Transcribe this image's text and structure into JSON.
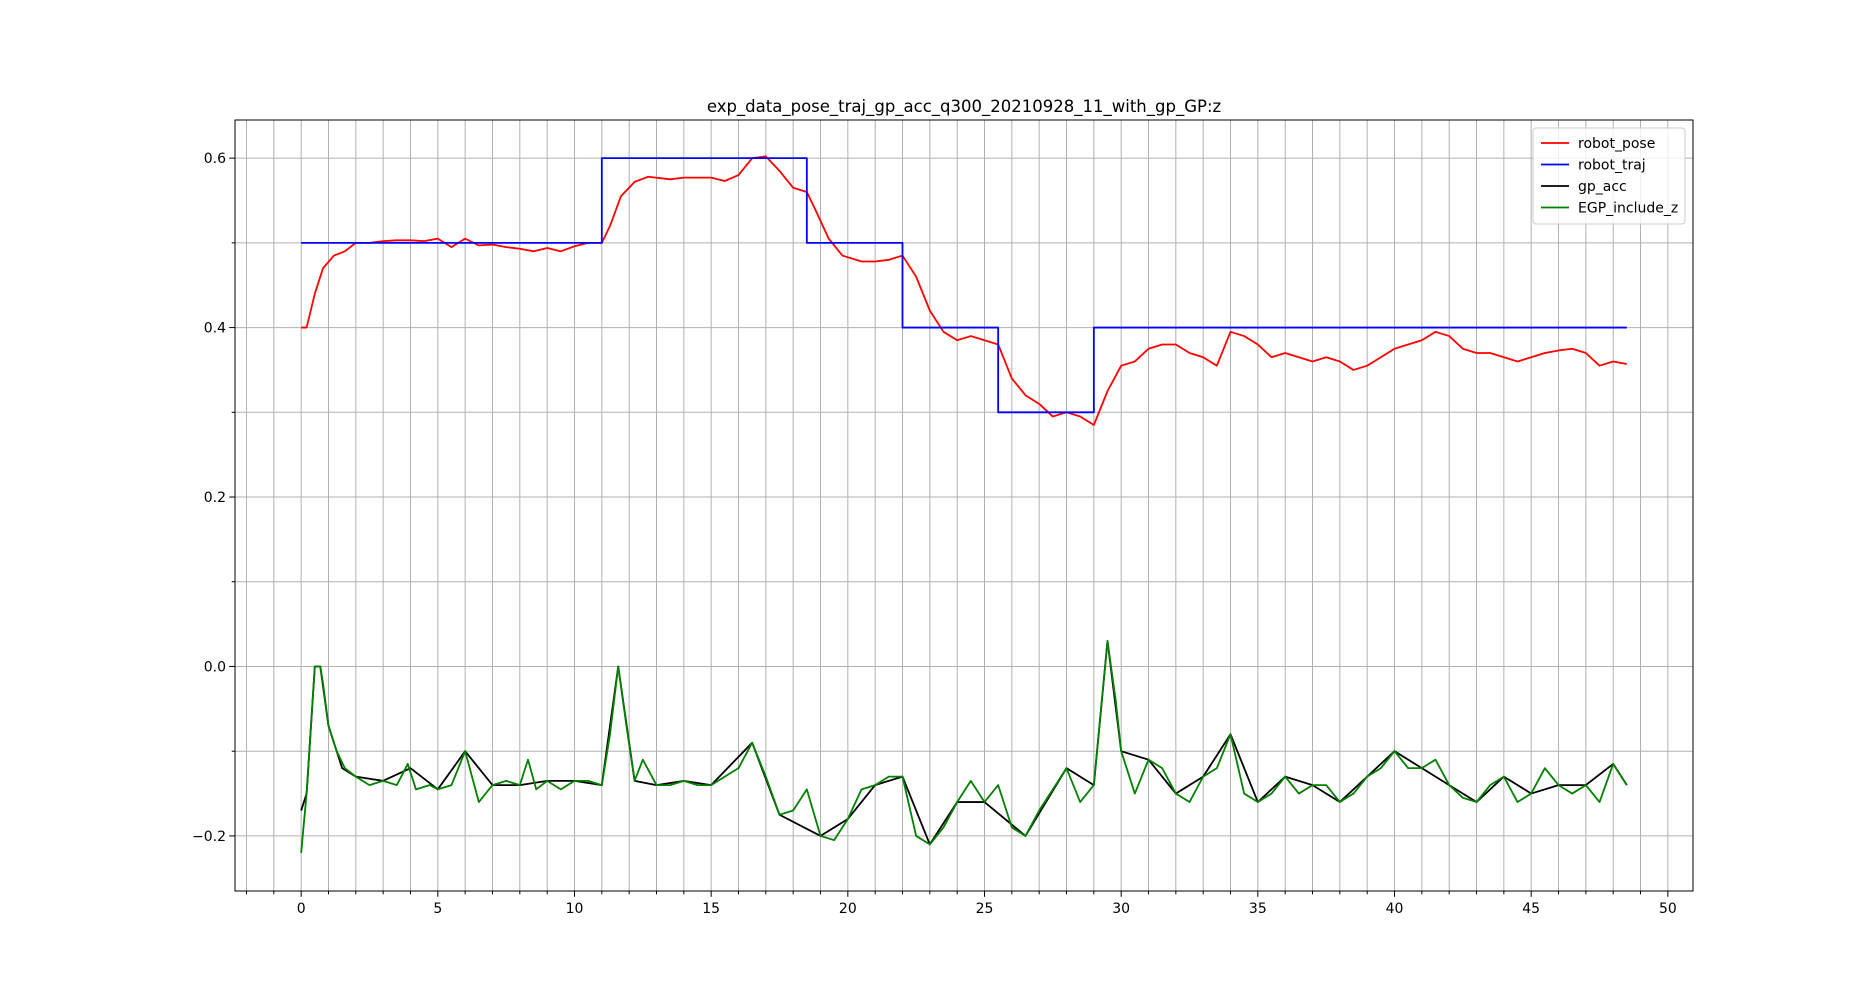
{
  "chart_data": {
    "type": "line",
    "title": "exp_data_pose_traj_gp_acc_q300_20210928_11_with_gp_GP:z",
    "xlim": [
      -2.42,
      50.92
    ],
    "ylim": [
      -0.265,
      0.645
    ],
    "xticks": [
      0,
      5,
      10,
      15,
      20,
      25,
      30,
      35,
      40,
      45,
      50
    ],
    "yticks": [
      {
        "value": -0.2,
        "label": "−0.2"
      },
      {
        "value": 0,
        "label": "0.0"
      },
      0.2,
      0.4,
      0.6
    ],
    "xminorticks": [
      -2,
      -1,
      1,
      2,
      3,
      4,
      6,
      7,
      8,
      9,
      11,
      12,
      13,
      14,
      16,
      17,
      18,
      19,
      21,
      22,
      23,
      24,
      26,
      27,
      28,
      29,
      31,
      32,
      33,
      34,
      36,
      37,
      38,
      39,
      41,
      42,
      43,
      44,
      46,
      47,
      48,
      49
    ],
    "yminorticks": [
      -0.1,
      0.1,
      0.3,
      0.5
    ],
    "grid": true,
    "legend": "upper right",
    "series": [
      {
        "name": "robot_pose",
        "color": "#ff0000",
        "x": [
          0,
          0.2,
          0.5,
          0.8,
          1.2,
          1.6,
          2,
          2.5,
          3,
          3.5,
          4,
          4.5,
          5,
          5.5,
          6,
          6.5,
          7,
          7.5,
          8,
          8.5,
          9,
          9.5,
          10,
          10.5,
          11,
          11.3,
          11.7,
          12.2,
          12.7,
          13.5,
          14,
          15,
          15.5,
          16,
          16.5,
          17,
          17.5,
          18,
          18.5,
          18.8,
          19.3,
          19.8,
          20.5,
          21,
          21.5,
          22,
          22.5,
          23,
          23.5,
          24,
          24.5,
          25,
          25.5,
          26,
          26.5,
          27,
          27.5,
          28,
          28.5,
          29,
          29.5,
          30,
          30.5,
          31,
          31.5,
          32,
          32.5,
          33,
          33.5,
          34,
          34.5,
          35,
          35.5,
          36,
          36.5,
          37,
          37.5,
          38,
          38.5,
          39,
          39.5,
          40,
          40.5,
          41,
          41.5,
          42,
          42.5,
          43,
          43.5,
          44,
          44.5,
          45,
          45.5,
          46,
          46.5,
          47,
          47.5,
          48,
          48.5
        ],
        "values": [
          0.4,
          0.4,
          0.44,
          0.47,
          0.485,
          0.49,
          0.5,
          0.5,
          0.502,
          0.503,
          0.503,
          0.502,
          0.505,
          0.495,
          0.505,
          0.497,
          0.498,
          0.495,
          0.493,
          0.49,
          0.494,
          0.49,
          0.496,
          0.5,
          0.5,
          0.52,
          0.555,
          0.572,
          0.578,
          0.575,
          0.577,
          0.577,
          0.573,
          0.58,
          0.6,
          0.602,
          0.585,
          0.565,
          0.56,
          0.54,
          0.505,
          0.485,
          0.478,
          0.478,
          0.48,
          0.485,
          0.46,
          0.42,
          0.395,
          0.385,
          0.39,
          0.385,
          0.38,
          0.34,
          0.32,
          0.31,
          0.295,
          0.3,
          0.295,
          0.285,
          0.325,
          0.355,
          0.36,
          0.375,
          0.38,
          0.38,
          0.37,
          0.365,
          0.355,
          0.395,
          0.39,
          0.38,
          0.365,
          0.37,
          0.365,
          0.36,
          0.365,
          0.36,
          0.35,
          0.355,
          0.365,
          0.375,
          0.38,
          0.385,
          0.395,
          0.39,
          0.375,
          0.37,
          0.37,
          0.365,
          0.36,
          0.365,
          0.37,
          0.373,
          0.375,
          0.37,
          0.355,
          0.36,
          0.357
        ]
      },
      {
        "name": "robot_traj",
        "color": "#0000ff",
        "x": [
          0,
          11,
          11,
          18.5,
          18.5,
          22,
          22,
          25.5,
          25.5,
          29,
          29,
          48.5
        ],
        "values": [
          0.5,
          0.5,
          0.6,
          0.6,
          0.5,
          0.5,
          0.4,
          0.4,
          0.3,
          0.3,
          0.4,
          0.4
        ]
      },
      {
        "name": "gp_acc",
        "color": "#000000",
        "x": [
          0,
          0.2,
          0.5,
          0.7,
          1,
          1.5,
          2,
          3,
          4,
          5,
          6,
          7,
          8,
          9,
          10,
          11,
          11.6,
          12.2,
          13,
          14,
          15,
          16.5,
          17.5,
          19,
          20,
          21,
          22,
          23,
          24,
          25,
          26.5,
          28,
          29,
          29.5,
          30,
          31,
          32,
          33,
          34,
          35,
          36,
          37,
          38,
          39,
          40,
          41,
          42,
          43,
          44,
          45,
          46,
          47,
          48,
          48.5
        ],
        "values": [
          -0.17,
          -0.15,
          0.0,
          0.0,
          -0.07,
          -0.12,
          -0.13,
          -0.135,
          -0.12,
          -0.145,
          -0.1,
          -0.14,
          -0.14,
          -0.135,
          -0.135,
          -0.14,
          0.0,
          -0.135,
          -0.14,
          -0.135,
          -0.14,
          -0.09,
          -0.175,
          -0.2,
          -0.18,
          -0.14,
          -0.13,
          -0.21,
          -0.16,
          -0.16,
          -0.2,
          -0.12,
          -0.14,
          0.03,
          -0.1,
          -0.11,
          -0.15,
          -0.13,
          -0.08,
          -0.16,
          -0.13,
          -0.14,
          -0.16,
          -0.13,
          -0.1,
          -0.12,
          -0.14,
          -0.16,
          -0.13,
          -0.15,
          -0.14,
          -0.14,
          -0.115,
          -0.14
        ]
      },
      {
        "name": "EGP_include_z",
        "color": "#008000",
        "x": [
          0,
          0.2,
          0.5,
          0.7,
          0.8,
          1,
          1.3,
          1.6,
          2,
          2.5,
          3,
          3.5,
          3.9,
          4.2,
          4.7,
          5,
          5.5,
          6,
          6.5,
          7,
          7.5,
          8,
          8.3,
          8.6,
          9,
          9.5,
          10,
          10.5,
          11,
          11.3,
          11.6,
          11.9,
          12.2,
          12.5,
          13,
          13.5,
          14,
          14.5,
          15,
          15.5,
          16,
          16.5,
          17,
          17.5,
          18,
          18.5,
          19,
          19.5,
          20,
          20.5,
          21,
          21.5,
          22,
          22.5,
          23,
          23.5,
          24,
          24.5,
          25,
          25.5,
          26,
          26.5,
          27,
          27.5,
          28,
          28.5,
          29,
          29.5,
          29.8,
          30,
          30.5,
          31,
          31.5,
          32,
          32.5,
          33,
          33.5,
          34,
          34.5,
          35,
          35.5,
          36,
          36.5,
          37,
          37.5,
          38,
          38.5,
          39,
          39.5,
          40,
          40.5,
          41,
          41.5,
          42,
          42.5,
          43,
          43.5,
          44,
          44.5,
          45,
          45.5,
          46,
          46.5,
          47,
          47.5,
          48,
          48.5
        ],
        "values": [
          -0.22,
          -0.15,
          0.0,
          0.0,
          -0.02,
          -0.07,
          -0.1,
          -0.12,
          -0.13,
          -0.14,
          -0.135,
          -0.14,
          -0.115,
          -0.145,
          -0.14,
          -0.145,
          -0.14,
          -0.1,
          -0.16,
          -0.14,
          -0.135,
          -0.14,
          -0.11,
          -0.145,
          -0.135,
          -0.145,
          -0.135,
          -0.135,
          -0.14,
          -0.08,
          0.0,
          -0.07,
          -0.135,
          -0.11,
          -0.14,
          -0.14,
          -0.135,
          -0.14,
          -0.14,
          -0.13,
          -0.12,
          -0.09,
          -0.13,
          -0.175,
          -0.17,
          -0.145,
          -0.2,
          -0.205,
          -0.18,
          -0.145,
          -0.14,
          -0.13,
          -0.13,
          -0.2,
          -0.21,
          -0.19,
          -0.16,
          -0.135,
          -0.16,
          -0.14,
          -0.19,
          -0.2,
          -0.17,
          -0.145,
          -0.12,
          -0.16,
          -0.14,
          0.03,
          -0.04,
          -0.1,
          -0.15,
          -0.11,
          -0.12,
          -0.15,
          -0.16,
          -0.13,
          -0.12,
          -0.08,
          -0.15,
          -0.16,
          -0.15,
          -0.13,
          -0.15,
          -0.14,
          -0.14,
          -0.16,
          -0.15,
          -0.13,
          -0.12,
          -0.1,
          -0.12,
          -0.12,
          -0.11,
          -0.14,
          -0.155,
          -0.16,
          -0.14,
          -0.13,
          -0.16,
          -0.15,
          -0.12,
          -0.14,
          -0.15,
          -0.14,
          -0.16,
          -0.115,
          -0.14
        ]
      }
    ]
  }
}
